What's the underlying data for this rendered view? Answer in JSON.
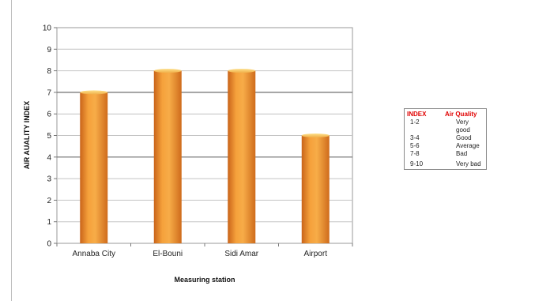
{
  "chart_data": {
    "type": "bar",
    "title": "",
    "categories": [
      "Annaba City",
      "El-Bouni",
      "Sidi Amar",
      "Airport"
    ],
    "values": [
      7,
      8,
      8,
      5
    ],
    "xlabel": "Measuring station",
    "ylabel": "AIR AUALITY INDEX",
    "ylim": [
      0,
      10
    ],
    "yticks": [
      0,
      1,
      2,
      3,
      4,
      5,
      6,
      7,
      8,
      9,
      10
    ],
    "grid": true,
    "bar_color": "#f0962a"
  },
  "legend_table": {
    "headers": [
      "INDEX",
      "Air Quality"
    ],
    "rows": [
      [
        "1-2",
        "Very good"
      ],
      [
        "3-4",
        "Good"
      ],
      [
        "5-6",
        "Average"
      ],
      [
        "7-8",
        "Bad"
      ],
      [
        "9-10",
        "Very bad"
      ]
    ]
  }
}
